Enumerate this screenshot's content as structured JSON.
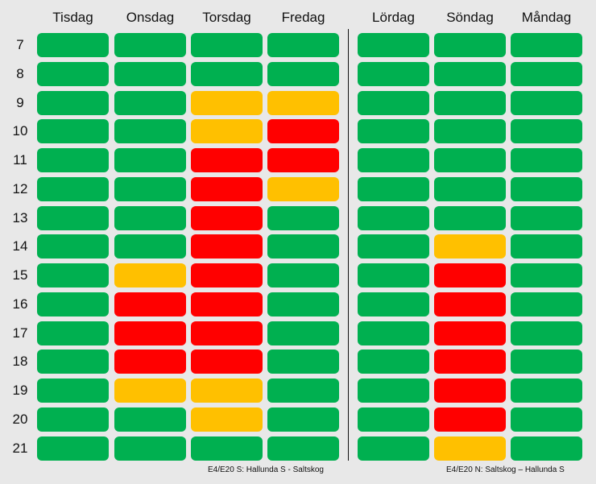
{
  "chart_data": {
    "type": "heatmap",
    "left_panel": {
      "columns": [
        "Tisdag",
        "Onsdag",
        "Torsdag",
        "Fredag"
      ],
      "rows": [
        "7",
        "8",
        "9",
        "10",
        "11",
        "12",
        "13",
        "14",
        "15",
        "16",
        "17",
        "18",
        "19",
        "20",
        "21"
      ],
      "cells": [
        [
          "G",
          "G",
          "G",
          "G"
        ],
        [
          "G",
          "G",
          "G",
          "G"
        ],
        [
          "G",
          "G",
          "Y",
          "Y"
        ],
        [
          "G",
          "G",
          "Y",
          "R"
        ],
        [
          "G",
          "G",
          "R",
          "R"
        ],
        [
          "G",
          "G",
          "R",
          "Y"
        ],
        [
          "G",
          "G",
          "R",
          "G"
        ],
        [
          "G",
          "G",
          "R",
          "G"
        ],
        [
          "G",
          "Y",
          "R",
          "G"
        ],
        [
          "G",
          "R",
          "R",
          "G"
        ],
        [
          "G",
          "R",
          "R",
          "G"
        ],
        [
          "G",
          "R",
          "R",
          "G"
        ],
        [
          "G",
          "Y",
          "Y",
          "G"
        ],
        [
          "G",
          "G",
          "Y",
          "G"
        ],
        [
          "G",
          "G",
          "G",
          "G"
        ]
      ],
      "footer": "E4/E20 S: Hallunda S - Saltskog"
    },
    "right_panel": {
      "columns": [
        "Lördag",
        "Söndag",
        "Måndag"
      ],
      "cells": [
        [
          "G",
          "G",
          "G"
        ],
        [
          "G",
          "G",
          "G"
        ],
        [
          "G",
          "G",
          "G"
        ],
        [
          "G",
          "G",
          "G"
        ],
        [
          "G",
          "G",
          "G"
        ],
        [
          "G",
          "G",
          "G"
        ],
        [
          "G",
          "G",
          "G"
        ],
        [
          "G",
          "Y",
          "G"
        ],
        [
          "G",
          "R",
          "G"
        ],
        [
          "G",
          "R",
          "G"
        ],
        [
          "G",
          "R",
          "G"
        ],
        [
          "G",
          "R",
          "G"
        ],
        [
          "G",
          "R",
          "G"
        ],
        [
          "G",
          "R",
          "G"
        ],
        [
          "G",
          "Y",
          "G"
        ]
      ],
      "footer": "E4/E20 N: Saltskog – Hallunda S"
    },
    "colors": {
      "G": "#00b050",
      "Y": "#ffc000",
      "R": "#ff0000"
    }
  }
}
